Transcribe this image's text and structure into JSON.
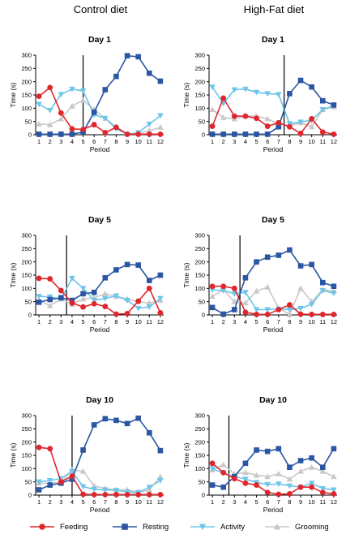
{
  "column_titles": [
    "Control diet",
    "High-Fat diet"
  ],
  "series_styles": [
    {
      "name": "Feeding",
      "color": "#e0262d",
      "marker": "circle"
    },
    {
      "name": "Resting",
      "color": "#2a56a3",
      "marker": "square"
    },
    {
      "name": "Activity",
      "color": "#6ec5ea",
      "marker": "triangle-down"
    },
    {
      "name": "Grooming",
      "color": "#c8c8c8",
      "marker": "triangle-up"
    }
  ],
  "chart_data": [
    {
      "type": "line",
      "diet": "Control diet",
      "title": "Day 1",
      "xlabel": "Period",
      "ylabel": "Time (s)",
      "x": [
        1,
        2,
        3,
        4,
        5,
        6,
        7,
        8,
        9,
        10,
        11,
        12
      ],
      "ylim": [
        0,
        300
      ],
      "yticks": [
        0,
        50,
        100,
        150,
        200,
        250,
        300
      ],
      "vline": 5,
      "series": [
        {
          "name": "Feeding",
          "values": [
            145,
            178,
            82,
            22,
            20,
            38,
            8,
            28,
            2,
            2,
            2,
            2
          ]
        },
        {
          "name": "Resting",
          "values": [
            2,
            2,
            2,
            2,
            10,
            85,
            170,
            220,
            298,
            294,
            232,
            202
          ]
        },
        {
          "name": "Activity",
          "values": [
            115,
            92,
            152,
            172,
            165,
            75,
            62,
            22,
            2,
            8,
            40,
            72
          ]
        },
        {
          "name": "Grooming",
          "values": [
            40,
            38,
            60,
            108,
            130,
            95,
            62,
            30,
            2,
            5,
            15,
            28
          ]
        }
      ]
    },
    {
      "type": "line",
      "diet": "High-Fat diet",
      "title": "Day 1",
      "xlabel": "Period",
      "ylabel": "Time (s)",
      "x": [
        1,
        2,
        3,
        4,
        5,
        6,
        7,
        8,
        9,
        10,
        11,
        12
      ],
      "ylim": [
        0,
        300
      ],
      "yticks": [
        0,
        50,
        100,
        150,
        200,
        250,
        300
      ],
      "vline": 7.5,
      "series": [
        {
          "name": "Feeding",
          "values": [
            32,
            138,
            70,
            70,
            62,
            32,
            45,
            30,
            5,
            60,
            10,
            2
          ]
        },
        {
          "name": "Resting",
          "values": [
            2,
            2,
            2,
            2,
            2,
            2,
            30,
            155,
            205,
            180,
            128,
            112
          ]
        },
        {
          "name": "Activity",
          "values": [
            180,
            118,
            170,
            172,
            160,
            155,
            152,
            42,
            48,
            55,
            95,
            110
          ]
        },
        {
          "name": "Grooming",
          "values": [
            95,
            65,
            60,
            70,
            70,
            60,
            40,
            35,
            45,
            30,
            95,
            105
          ]
        }
      ]
    },
    {
      "type": "line",
      "diet": "Control diet",
      "title": "Day 5",
      "xlabel": "Period",
      "ylabel": "Time (s)",
      "x": [
        1,
        2,
        3,
        4,
        5,
        6,
        7,
        8,
        9,
        10,
        11,
        12
      ],
      "ylim": [
        0,
        300
      ],
      "yticks": [
        0,
        50,
        100,
        150,
        200,
        250,
        300
      ],
      "vline": 3.5,
      "series": [
        {
          "name": "Feeding",
          "values": [
            138,
            136,
            92,
            45,
            30,
            42,
            32,
            3,
            5,
            52,
            100,
            8
          ]
        },
        {
          "name": "Resting",
          "values": [
            48,
            58,
            65,
            55,
            80,
            85,
            140,
            170,
            190,
            188,
            130,
            150
          ]
        },
        {
          "name": "Activity",
          "values": [
            70,
            68,
            60,
            138,
            100,
            55,
            62,
            72,
            55,
            25,
            30,
            62
          ]
        },
        {
          "name": "Grooming",
          "values": [
            55,
            35,
            60,
            40,
            60,
            65,
            80,
            70,
            60,
            50,
            45,
            55
          ]
        }
      ]
    },
    {
      "type": "line",
      "diet": "High-Fat diet",
      "title": "Day 5",
      "xlabel": "Period",
      "ylabel": "Time (s)",
      "x": [
        1,
        2,
        3,
        4,
        5,
        6,
        7,
        8,
        9,
        10,
        11,
        12
      ],
      "ylim": [
        0,
        300
      ],
      "yticks": [
        0,
        50,
        100,
        150,
        200,
        250,
        300
      ],
      "vline": 3.5,
      "series": [
        {
          "name": "Feeding",
          "values": [
            108,
            108,
            100,
            10,
            2,
            2,
            20,
            38,
            3,
            2,
            2,
            2
          ]
        },
        {
          "name": "Resting",
          "values": [
            28,
            3,
            20,
            140,
            200,
            218,
            225,
            245,
            185,
            190,
            122,
            108
          ]
        },
        {
          "name": "Activity",
          "values": [
            95,
            92,
            80,
            85,
            20,
            20,
            22,
            20,
            25,
            40,
            92,
            82
          ]
        },
        {
          "name": "Grooming",
          "values": [
            70,
            95,
            50,
            45,
            90,
            105,
            25,
            2,
            100,
            50,
            95,
            90
          ]
        }
      ]
    },
    {
      "type": "line",
      "diet": "Control diet",
      "title": "Day 10",
      "xlabel": "Period",
      "ylabel": "Time (s)",
      "x": [
        1,
        2,
        3,
        4,
        5,
        6,
        7,
        8,
        9,
        10,
        11,
        12
      ],
      "ylim": [
        0,
        300
      ],
      "yticks": [
        0,
        50,
        100,
        150,
        200,
        250,
        300
      ],
      "vline": 4,
      "series": [
        {
          "name": "Feeding",
          "values": [
            180,
            175,
            50,
            72,
            3,
            2,
            2,
            2,
            2,
            2,
            2,
            2
          ]
        },
        {
          "name": "Resting",
          "values": [
            20,
            38,
            45,
            60,
            170,
            265,
            288,
            282,
            270,
            290,
            235,
            168
          ]
        },
        {
          "name": "Activity",
          "values": [
            50,
            55,
            62,
            90,
            32,
            22,
            20,
            18,
            12,
            10,
            30,
            55
          ]
        },
        {
          "name": "Grooming",
          "values": [
            45,
            45,
            48,
            95,
            90,
            35,
            25,
            20,
            20,
            10,
            20,
            70
          ]
        }
      ]
    },
    {
      "type": "line",
      "diet": "High-Fat diet",
      "title": "Day 10",
      "xlabel": "Period",
      "ylabel": "Time (s)",
      "x": [
        1,
        2,
        3,
        4,
        5,
        6,
        7,
        8,
        9,
        10,
        11,
        12
      ],
      "ylim": [
        0,
        300
      ],
      "yticks": [
        0,
        50,
        100,
        150,
        200,
        250,
        300
      ],
      "vline": 2.5,
      "series": [
        {
          "name": "Feeding",
          "values": [
            120,
            85,
            62,
            45,
            38,
            10,
            3,
            5,
            30,
            30,
            10,
            5
          ]
        },
        {
          "name": "Resting",
          "values": [
            38,
            30,
            70,
            120,
            170,
            165,
            175,
            105,
            130,
            140,
            105,
            175
          ]
        },
        {
          "name": "Activity",
          "values": [
            100,
            82,
            70,
            60,
            48,
            40,
            42,
            35,
            30,
            45,
            25,
            20
          ]
        },
        {
          "name": "Grooming",
          "values": [
            95,
            115,
            80,
            85,
            75,
            70,
            80,
            60,
            90,
            105,
            90,
            70
          ]
        }
      ]
    }
  ]
}
